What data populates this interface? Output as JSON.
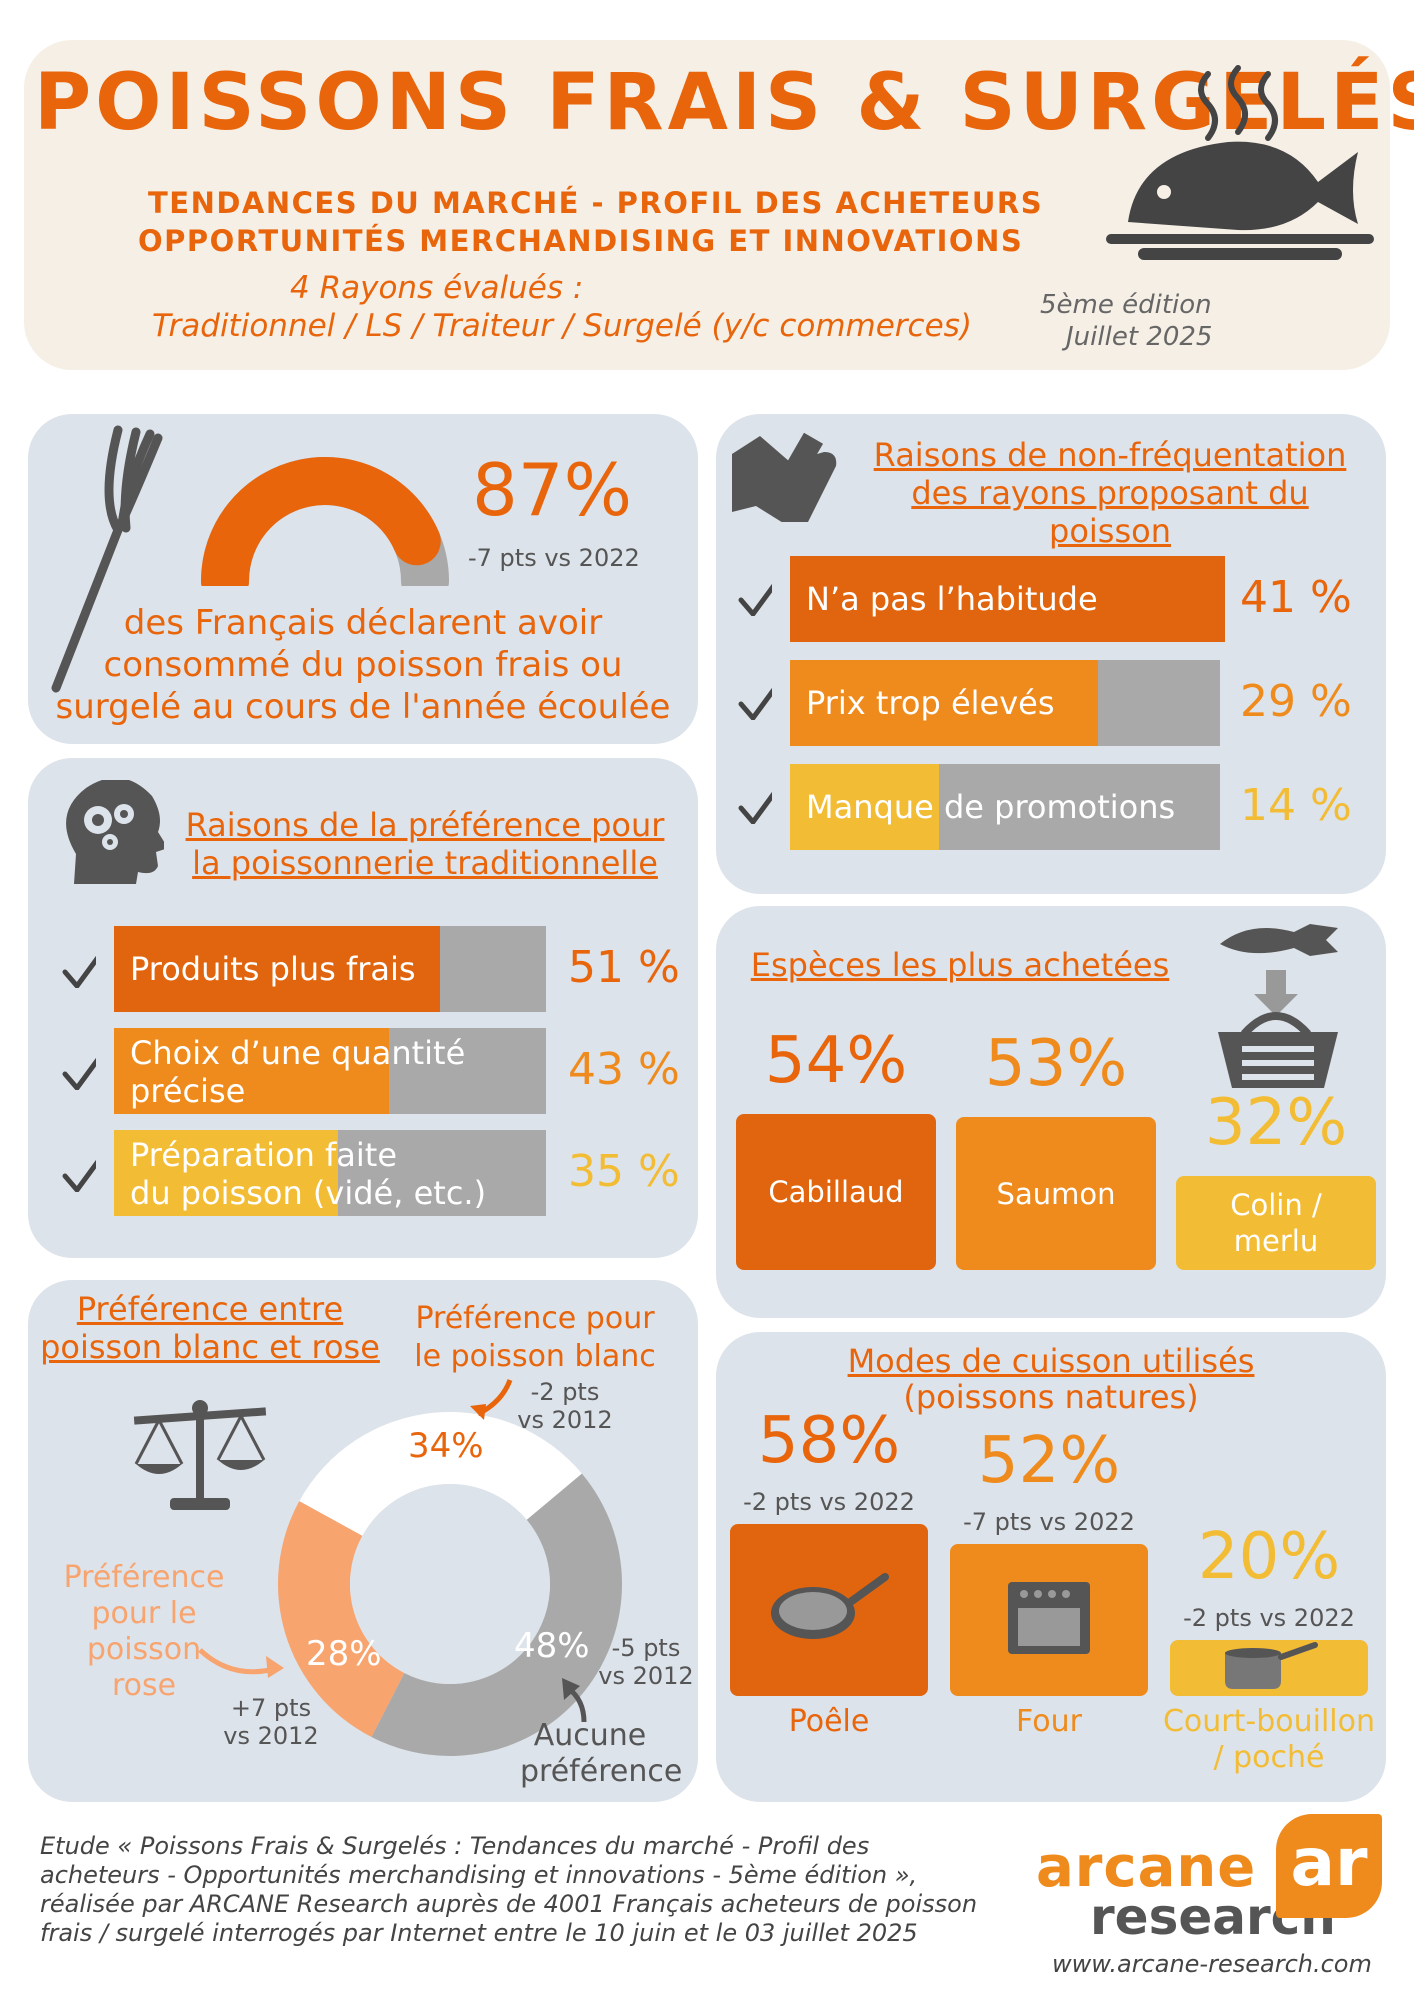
{
  "header": {
    "title": "POISSONS FRAIS & SURGELÉS",
    "subtitle_line1": "TENDANCES DU MARCHÉ - PROFIL DES ACHETEURS",
    "subtitle_line2": "OPPORTUNITÉS MERCHANDISING ET INNOVATIONS",
    "rayons_line1": "4 Rayons évalués :",
    "rayons_line2": "Traditionnel / LS / Traiteur / Surgelé (y/c commerces)",
    "edition": "5ème édition",
    "date": "Juillet 2025",
    "icon": "fish-plate-icon"
  },
  "consumption": {
    "value": 87,
    "pct_label": "87%",
    "delta": "-7 pts vs 2022",
    "text_line1": "des Français déclarent avoir",
    "text_line2": "consommé du poisson frais ou",
    "text_line3": "surgelé au cours de l'année écoulée",
    "icon": "fork-icon"
  },
  "non_frequentation": {
    "title_line1": "Raisons de non-fréquentation",
    "title_line2": "des rayons proposant du poisson",
    "icon": "thumbs-down-icon",
    "items": [
      {
        "label": "N’a pas l’habitude",
        "value": 41,
        "pct": "41 %",
        "color": "#e0650e"
      },
      {
        "label": "Prix trop élevés",
        "value": 29,
        "pct": "29 %",
        "color": "#ef8a1c"
      },
      {
        "label": "Manque de promotions",
        "value": 14,
        "pct": "14 %",
        "color": "#f3bc35"
      }
    ]
  },
  "preference_trad": {
    "title_line1": "Raisons de la préférence pour",
    "title_line2": "la poissonnerie traditionnelle",
    "icon": "head-gears-icon",
    "items": [
      {
        "label1": "Produits plus frais",
        "label2": "",
        "value": 51,
        "pct": "51 %",
        "color": "#e0650e"
      },
      {
        "label1": "Choix d’une quantité",
        "label2": "précise",
        "value": 43,
        "pct": "43 %",
        "color": "#ef8a1c"
      },
      {
        "label1": "Préparation faite",
        "label2": "du poisson (vidé, etc.)",
        "value": 35,
        "pct": "35 %",
        "color": "#f3bc35"
      }
    ]
  },
  "species": {
    "title": "Espèces les plus achetées",
    "icon": "fish-basket-icon",
    "items": [
      {
        "label1": "Cabillaud",
        "label2": "",
        "value": 54,
        "pct": "54%",
        "color": "#e0650e"
      },
      {
        "label1": "Saumon",
        "label2": "",
        "value": 53,
        "pct": "53%",
        "color": "#ef8a1c"
      },
      {
        "label1": "Colin /",
        "label2": "merlu",
        "value": 32,
        "pct": "32%",
        "color": "#f3bc35"
      }
    ]
  },
  "white_pink": {
    "title_line1": "Préférence entre",
    "title_line2": "poisson blanc et rose",
    "icon": "scale-icon",
    "white_label1": "Préférence pour",
    "white_label2": "le poisson blanc",
    "white_pct": "34%",
    "white_value": 34,
    "white_delta1": "-2 pts",
    "white_delta2": "vs 2012",
    "pink_label1": "Préférence",
    "pink_label2": "pour le poisson",
    "pink_label3": "rose",
    "pink_pct": "28%",
    "pink_value": 28,
    "pink_delta1": "+7 pts",
    "pink_delta2": "vs 2012",
    "none_label1": "Aucune",
    "none_label2": "préférence",
    "none_pct": "48%",
    "none_value": 48,
    "none_delta1": "-5 pts",
    "none_delta2": "vs 2012"
  },
  "cooking": {
    "title": "Modes de cuisson utilisés",
    "subtitle": "(poissons natures)",
    "items": [
      {
        "label1": "Poêle",
        "label2": "",
        "value": 58,
        "pct": "58%",
        "delta": "-2 pts vs 2022",
        "color": "#e0650e",
        "icon": "frying-pan-icon"
      },
      {
        "label1": "Four",
        "label2": "",
        "value": 52,
        "pct": "52%",
        "delta": "-7 pts vs 2022",
        "color": "#ef8a1c",
        "icon": "oven-icon"
      },
      {
        "label1": "Court-bouillon",
        "label2": "/ poché",
        "value": 20,
        "pct": "20%",
        "delta": "-2 pts vs 2022",
        "color": "#f3bc35",
        "icon": "saucepan-icon"
      }
    ]
  },
  "footer": {
    "line1": "Etude « Poissons Frais & Surgelés : Tendances du marché - Profil des",
    "line2": "acheteurs - Opportunités merchandising et innovations - 5ème édition »,",
    "line3": "réalisée par ARCANE Research auprès de 4001 Français acheteurs de poisson",
    "line4": "frais / surgelé interrogés par Internet entre le 10 juin et le 03 juillet 2025",
    "logo_word1": "arcane",
    "logo_word2": "research",
    "logo_mark": "ar",
    "url": "www.arcane-research.com"
  },
  "colors": {
    "orange": "#e0650e",
    "orange2": "#ef8a1c",
    "yellow": "#f3bc35",
    "grey": "#a9a9a9",
    "card": "#dde3ea"
  }
}
